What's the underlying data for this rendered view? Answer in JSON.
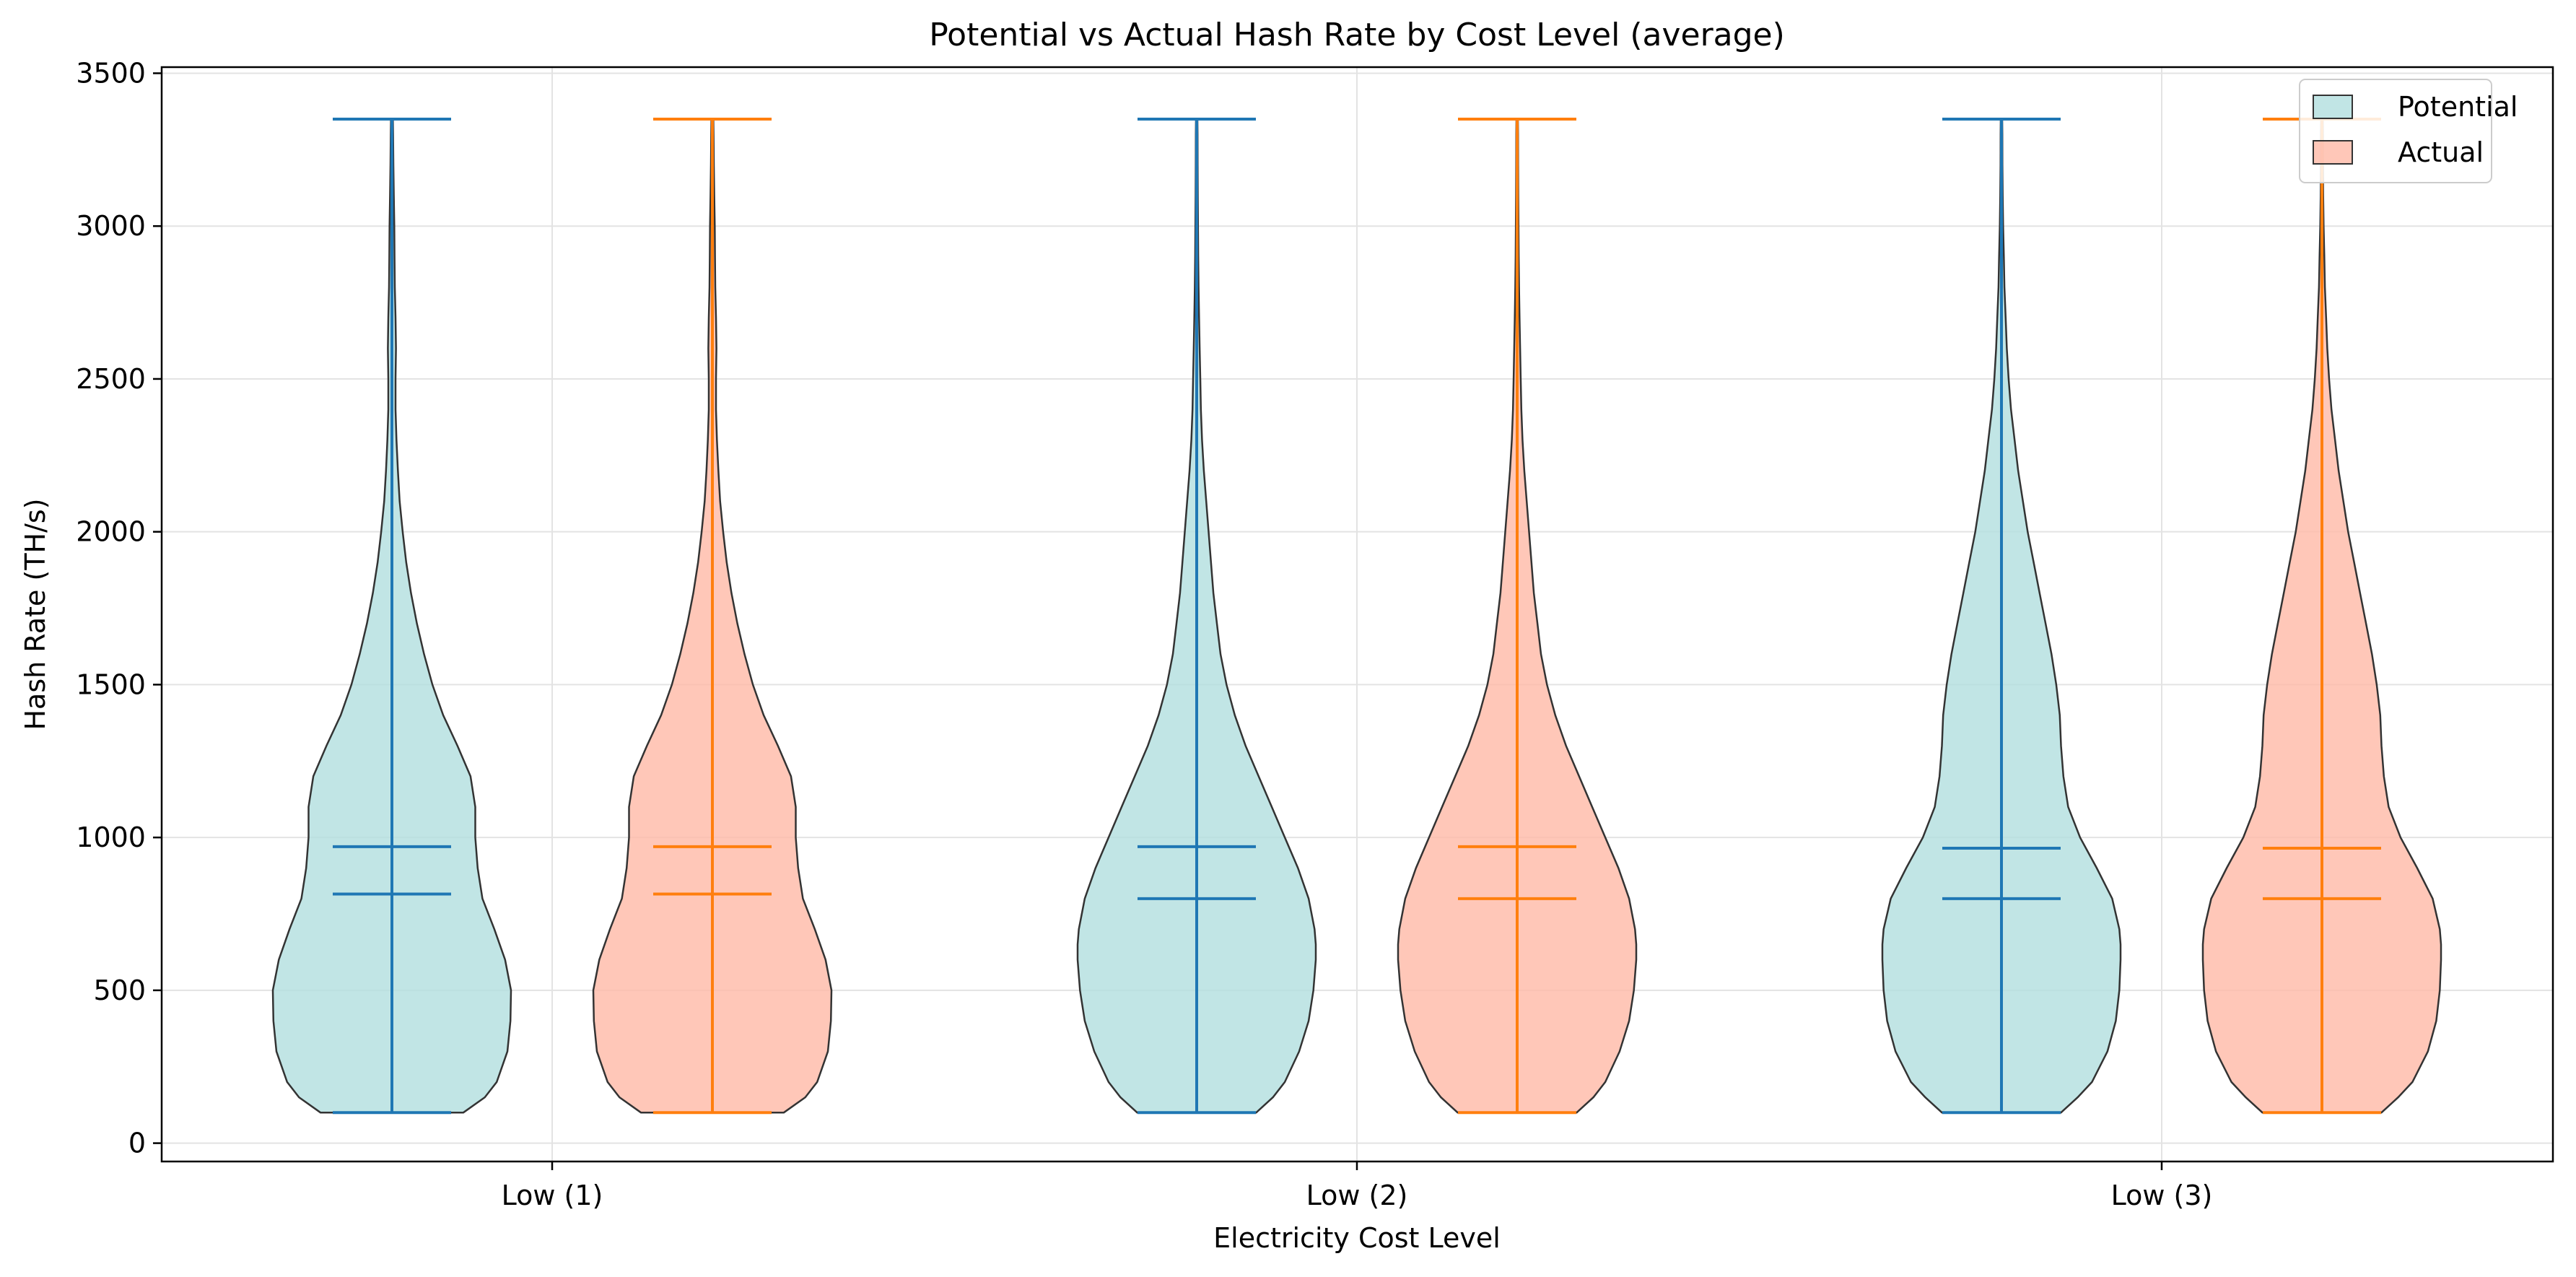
{
  "chart_data": {
    "type": "violin",
    "title": "Potential vs Actual Hash Rate by Cost Level (average)",
    "xlabel": "Electricity Cost Level",
    "ylabel": "Hash Rate (TH/s)",
    "categories": [
      "Low (1)",
      "Low (2)",
      "Low (3)"
    ],
    "ylim": [
      -60,
      3520
    ],
    "yticks": [
      0,
      500,
      1000,
      1500,
      2000,
      2500,
      3000,
      3500
    ],
    "grid": true,
    "legend_position": "top-right",
    "series": [
      {
        "name": "Potential",
        "fill": "#b2dfdf",
        "line": "#1f77b4",
        "stats": [
          {
            "min": 100,
            "median": 815,
            "mean": 970,
            "max": 3350
          },
          {
            "min": 100,
            "median": 800,
            "mean": 970,
            "max": 3350
          },
          {
            "min": 100,
            "median": 800,
            "mean": 965,
            "max": 3350
          }
        ]
      },
      {
        "name": "Actual",
        "fill": "#ffb9a6",
        "line": "#ff7f0e",
        "stats": [
          {
            "min": 100,
            "median": 815,
            "mean": 970,
            "max": 3350
          },
          {
            "min": 100,
            "median": 800,
            "mean": 970,
            "max": 3350
          },
          {
            "min": 100,
            "median": 800,
            "mean": 965,
            "max": 3350
          }
        ]
      }
    ]
  }
}
